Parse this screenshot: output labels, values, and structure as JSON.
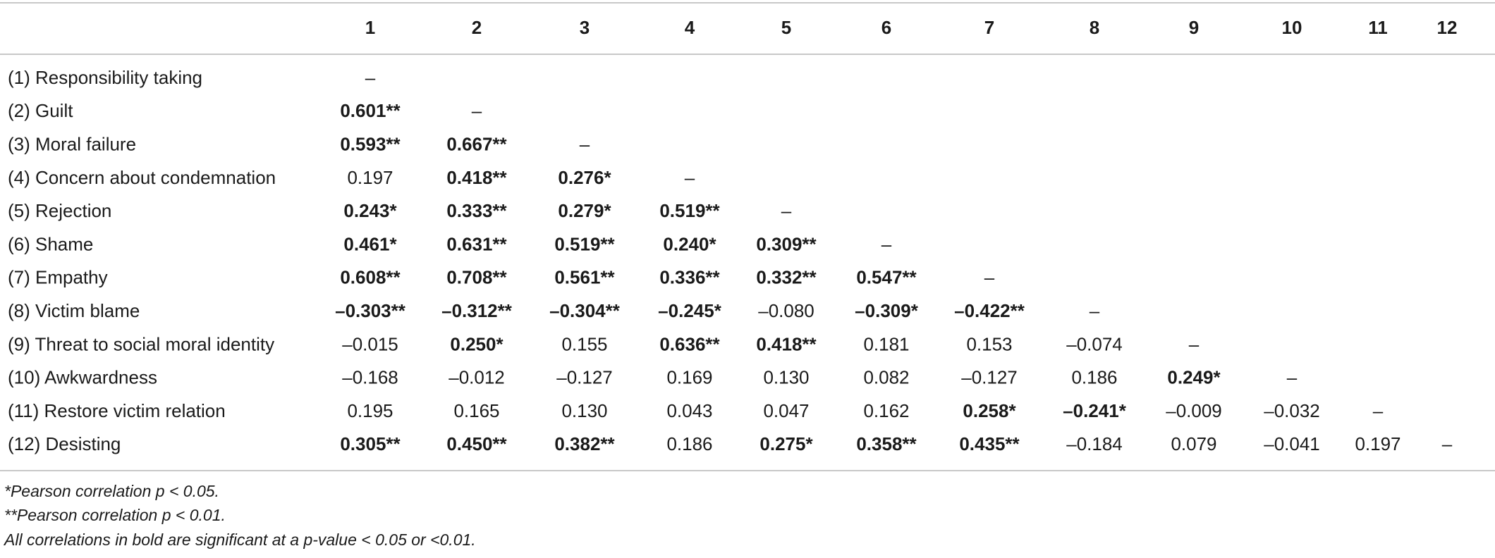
{
  "table": {
    "columns": [
      "1",
      "2",
      "3",
      "4",
      "5",
      "6",
      "7",
      "8",
      "9",
      "10",
      "11",
      "12"
    ],
    "rows": [
      {
        "label": "(1) Responsibility taking",
        "cells": [
          "–"
        ]
      },
      {
        "label": "(2) Guilt",
        "cells": [
          "0.601**",
          "–"
        ]
      },
      {
        "label": "(3) Moral failure",
        "cells": [
          "0.593**",
          "0.667**",
          "–"
        ]
      },
      {
        "label": "(4) Concern about condemnation",
        "cells": [
          "0.197",
          "0.418**",
          "0.276*",
          "–"
        ]
      },
      {
        "label": "(5) Rejection",
        "cells": [
          "0.243*",
          "0.333**",
          "0.279*",
          "0.519**",
          "–"
        ]
      },
      {
        "label": "(6) Shame",
        "cells": [
          "0.461*",
          "0.631**",
          "0.519**",
          "0.240*",
          "0.309**",
          "–"
        ]
      },
      {
        "label": "(7) Empathy",
        "cells": [
          "0.608**",
          "0.708**",
          "0.561**",
          "0.336**",
          "0.332**",
          "0.547**",
          "–"
        ]
      },
      {
        "label": "(8) Victim blame",
        "cells": [
          "–0.303**",
          "–0.312**",
          "–0.304**",
          "–0.245*",
          "–0.080",
          "–0.309*",
          "–0.422**",
          "–"
        ]
      },
      {
        "label": "(9) Threat to social moral identity",
        "cells": [
          "–0.015",
          "0.250*",
          "0.155",
          "0.636**",
          "0.418**",
          "0.181",
          "0.153",
          "–0.074",
          "–"
        ]
      },
      {
        "label": "(10) Awkwardness",
        "cells": [
          "–0.168",
          "–0.012",
          "–0.127",
          "0.169",
          "0.130",
          "0.082",
          "–0.127",
          "0.186",
          "0.249*",
          "–"
        ]
      },
      {
        "label": "(11) Restore victim relation",
        "cells": [
          "0.195",
          "0.165",
          "0.130",
          "0.043",
          "0.047",
          "0.162",
          "0.258*",
          "–0.241*",
          "–0.009",
          "–0.032",
          "–"
        ]
      },
      {
        "label": "(12) Desisting",
        "cells": [
          "0.305**",
          "0.450**",
          "0.382**",
          "0.186",
          "0.275*",
          "0.358**",
          "0.435**",
          "–0.184",
          "0.079",
          "–0.041",
          "0.197",
          "–"
        ]
      }
    ],
    "footnotes": [
      "*Pearson correlation p < 0.05.",
      "**Pearson correlation p < 0.01.",
      "All correlations in bold are significant at a p-value < 0.05 or <0.01."
    ]
  }
}
